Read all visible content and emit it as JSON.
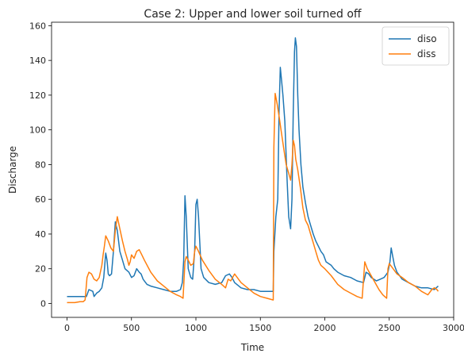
{
  "chart_data": {
    "type": "line",
    "title": "Case 2:  Upper and lower soil turned off",
    "xlabel": "Time",
    "ylabel": "Discharge",
    "xlim": [
      -120,
      3000
    ],
    "ylim": [
      -8,
      162
    ],
    "xticks": [
      0,
      500,
      1000,
      1500,
      2000,
      2500,
      3000
    ],
    "yticks": [
      0,
      20,
      40,
      60,
      80,
      100,
      120,
      140,
      160
    ],
    "grid": false,
    "legend_position": "top-right",
    "series": [
      {
        "name": "diso",
        "color": "#1f77b4",
        "x": [
          0,
          50,
          100,
          150,
          170,
          200,
          210,
          230,
          250,
          270,
          285,
          300,
          310,
          320,
          330,
          345,
          360,
          375,
          390,
          410,
          430,
          450,
          480,
          500,
          520,
          540,
          560,
          575,
          590,
          620,
          650,
          700,
          750,
          800,
          850,
          880,
          895,
          905,
          915,
          925,
          940,
          960,
          975,
          990,
          1000,
          1010,
          1020,
          1040,
          1060,
          1100,
          1150,
          1200,
          1230,
          1260,
          1280,
          1300,
          1350,
          1400,
          1450,
          1500,
          1550,
          1600,
          1605,
          1620,
          1635,
          1645,
          1655,
          1665,
          1675,
          1690,
          1705,
          1720,
          1735,
          1745,
          1755,
          1765,
          1772,
          1780,
          1790,
          1800,
          1815,
          1830,
          1850,
          1870,
          1890,
          1910,
          1930,
          1950,
          1970,
          1990,
          2010,
          2030,
          2050,
          2070,
          2100,
          2150,
          2200,
          2250,
          2300,
          2310,
          2320,
          2340,
          2360,
          2380,
          2400,
          2430,
          2460,
          2490,
          2505,
          2515,
          2525,
          2540,
          2560,
          2580,
          2600,
          2650,
          2700,
          2750,
          2800,
          2850,
          2880
        ],
        "y": [
          4,
          4,
          4,
          4,
          8,
          7,
          4,
          6,
          7,
          9,
          15,
          29,
          25,
          17,
          16,
          17,
          30,
          47,
          42,
          30,
          25,
          20,
          18,
          15,
          16,
          20,
          18,
          17,
          14,
          11,
          10,
          9,
          8,
          7,
          7,
          8,
          12,
          25,
          62,
          50,
          20,
          15,
          14,
          30,
          57,
          60,
          50,
          20,
          15,
          12,
          11,
          12,
          16,
          17,
          15,
          12,
          9,
          8,
          8,
          7,
          7,
          7,
          30,
          50,
          60,
          110,
          136,
          128,
          120,
          105,
          75,
          50,
          43,
          60,
          110,
          145,
          153,
          148,
          120,
          100,
          80,
          67,
          58,
          50,
          45,
          40,
          36,
          33,
          30,
          28,
          24,
          23,
          22,
          20,
          18,
          16,
          15,
          13,
          12,
          15,
          18,
          17,
          15,
          14,
          13,
          14,
          15,
          18,
          24,
          32,
          28,
          22,
          18,
          16,
          14,
          12,
          10,
          9,
          9,
          8,
          10
        ]
      },
      {
        "name": "diss",
        "color": "#ff7f0e",
        "x": [
          0,
          30,
          60,
          100,
          125,
          140,
          155,
          170,
          190,
          210,
          230,
          250,
          270,
          280,
          290,
          300,
          320,
          340,
          360,
          375,
          390,
          410,
          430,
          450,
          470,
          480,
          490,
          500,
          520,
          540,
          560,
          580,
          600,
          650,
          700,
          750,
          800,
          850,
          880,
          900,
          915,
          925,
          940,
          960,
          980,
          990,
          1000,
          1020,
          1050,
          1100,
          1150,
          1200,
          1230,
          1250,
          1270,
          1300,
          1350,
          1400,
          1450,
          1500,
          1550,
          1600,
          1605,
          1615,
          1630,
          1645,
          1660,
          1680,
          1700,
          1720,
          1735,
          1745,
          1755,
          1765,
          1775,
          1790,
          1810,
          1830,
          1850,
          1870,
          1890,
          1910,
          1930,
          1950,
          1970,
          2000,
          2050,
          2100,
          2150,
          2200,
          2250,
          2290,
          2310,
          2330,
          2360,
          2390,
          2420,
          2450,
          2480,
          2490,
          2500,
          2530,
          2560,
          2600,
          2650,
          2700,
          2750,
          2800,
          2830,
          2850,
          2870,
          2880
        ],
        "y": [
          0.5,
          0.5,
          0.5,
          1,
          1,
          2,
          15,
          18,
          17,
          14,
          13,
          15,
          22,
          28,
          33,
          39,
          36,
          32,
          30,
          42,
          50,
          43,
          36,
          30,
          25,
          22,
          24,
          28,
          26,
          30,
          31,
          28,
          25,
          18,
          13,
          10,
          7,
          5,
          4,
          3,
          24,
          27,
          25,
          22,
          23,
          30,
          33,
          30,
          25,
          19,
          14,
          11,
          9,
          14,
          13,
          17,
          12,
          9,
          6,
          4,
          3,
          2,
          90,
          121,
          115,
          108,
          100,
          90,
          80,
          75,
          71,
          80,
          94,
          91,
          83,
          77,
          67,
          55,
          48,
          45,
          40,
          35,
          30,
          25,
          22,
          20,
          16,
          11,
          8,
          6,
          4,
          3,
          24,
          20,
          16,
          12,
          8,
          5,
          3,
          20,
          23,
          20,
          17,
          15,
          12,
          10,
          7,
          5,
          8,
          9,
          8,
          7
        ]
      }
    ]
  }
}
